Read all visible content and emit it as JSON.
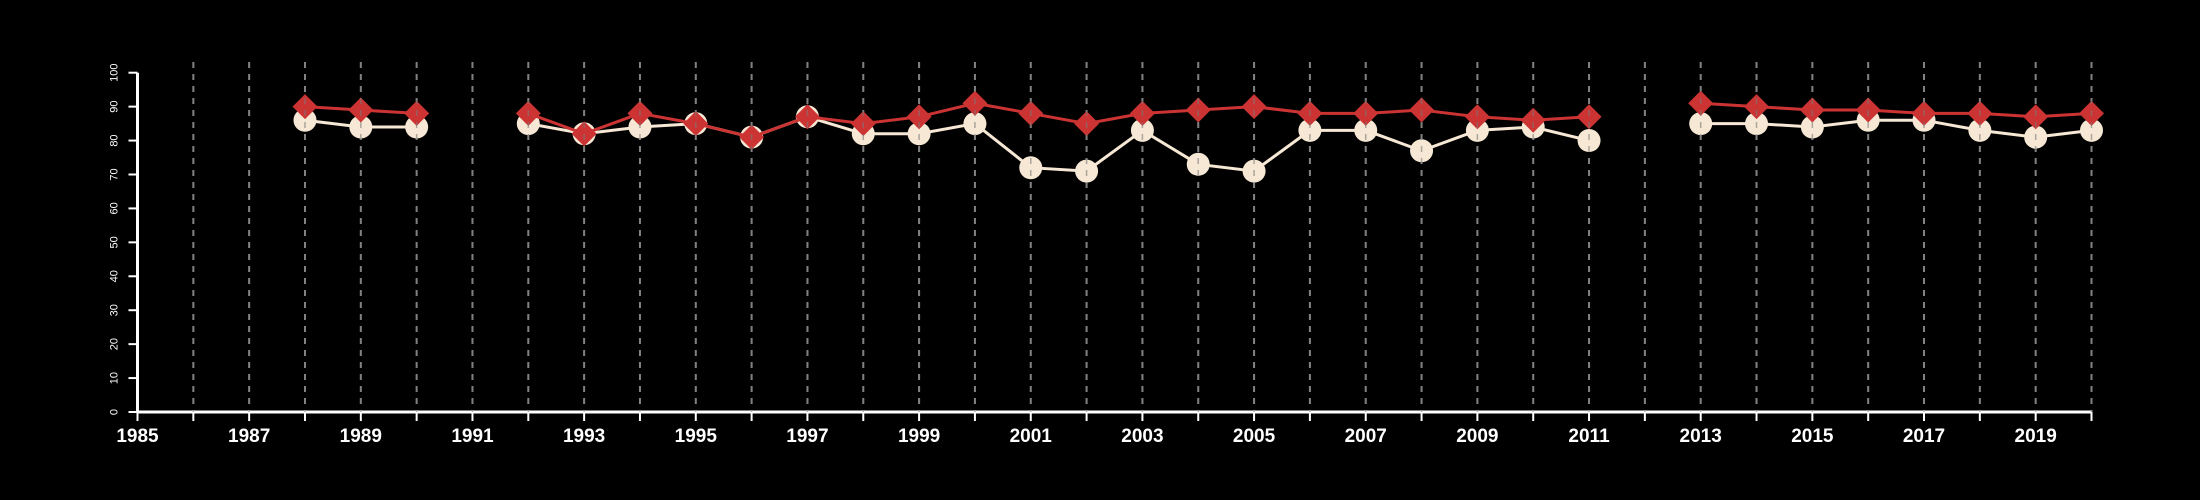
{
  "chart_data": {
    "type": "line",
    "title": "",
    "xlabel": "",
    "ylabel": "",
    "xlim": [
      1985,
      2020
    ],
    "ylim": [
      0,
      100
    ],
    "grid": "vertical dashed lines at every year",
    "x_tick_labels": [
      "1985",
      "1987",
      "1989",
      "1991",
      "1993",
      "1995",
      "1997",
      "1999",
      "2001",
      "2003",
      "2005",
      "2007",
      "2009",
      "2011",
      "2013",
      "2015",
      "2017",
      "2019"
    ],
    "y_tick_labels": [
      "0",
      "10",
      "20",
      "30",
      "40",
      "50",
      "60",
      "70",
      "80",
      "90",
      "100"
    ],
    "series": [
      {
        "name": "series-cream-circles",
        "color": "#f6e8d4",
        "marker": "circle",
        "x": [
          1988,
          1989,
          1990,
          null,
          1992,
          1993,
          1994,
          1995,
          1996,
          1997,
          1998,
          1999,
          2000,
          2001,
          2002,
          2003,
          2004,
          2005,
          2006,
          2007,
          2008,
          2009,
          2010,
          2011,
          null,
          2013,
          2014,
          2015,
          2016,
          2017,
          2018,
          2019,
          2020
        ],
        "values": [
          86,
          84,
          84,
          null,
          85,
          82,
          84,
          85,
          81,
          87,
          82,
          82,
          85,
          72,
          71,
          83,
          73,
          71,
          83,
          83,
          77,
          83,
          84,
          80,
          null,
          85,
          85,
          84,
          86,
          86,
          83,
          81,
          83
        ]
      },
      {
        "name": "series-red-diamonds",
        "color": "#cc3333",
        "marker": "diamond",
        "x": [
          1988,
          1989,
          1990,
          null,
          1992,
          1993,
          1994,
          1995,
          1996,
          1997,
          1998,
          1999,
          2000,
          2001,
          2002,
          2003,
          2004,
          2005,
          2006,
          2007,
          2008,
          2009,
          2010,
          2011,
          null,
          2013,
          2014,
          2015,
          2016,
          2017,
          2018,
          2019,
          2020
        ],
        "values": [
          90,
          89,
          88,
          null,
          88,
          82,
          88,
          85,
          81,
          87,
          85,
          87,
          91,
          88,
          85,
          88,
          89,
          90,
          88,
          88,
          89,
          87,
          86,
          87,
          null,
          91,
          90,
          89,
          89,
          88,
          88,
          87,
          88
        ]
      }
    ]
  }
}
